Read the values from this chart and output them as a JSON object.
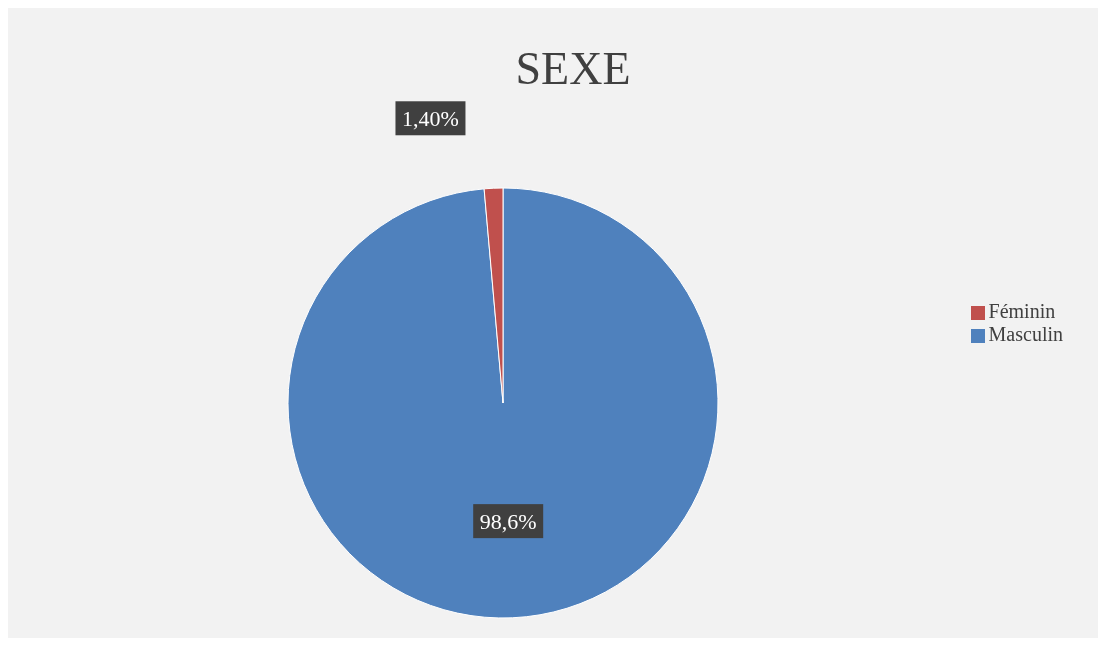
{
  "chart_data": {
    "type": "pie",
    "title": "SEXE",
    "categories": [
      "Masculin",
      "Féminin"
    ],
    "values": [
      98.6,
      1.4
    ],
    "colors": [
      "#4f81bd",
      "#c0504d"
    ],
    "value_labels": [
      "98,6%",
      "1,40%"
    ],
    "legend": "right"
  }
}
